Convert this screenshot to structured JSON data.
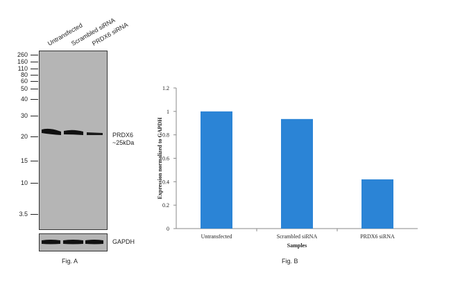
{
  "fig_a": {
    "lanes": [
      "Untransfected",
      "Scrambled siRNA",
      "PRDX6 siRNA"
    ],
    "markers": [
      "260",
      "160",
      "110",
      "80",
      "60",
      "50",
      "40",
      "30",
      "20",
      "15",
      "10",
      "3.5"
    ],
    "target_label": "PRDX6",
    "target_size": "~25kDa",
    "loading_control": "GAPDH",
    "caption": "Fig. A"
  },
  "fig_b": {
    "caption": "Fig. B"
  },
  "chart_data": {
    "type": "bar",
    "categories": [
      "Untransfected",
      "Scrambled siRNA",
      "PRDX6 siRNA"
    ],
    "values": [
      1.0,
      0.935,
      0.42
    ],
    "xlabel": "Samples",
    "ylabel": "Expression normalized to GAPDH",
    "ylim": [
      0,
      1.2
    ],
    "yticks": [
      "0",
      "0.2",
      "0.4",
      "0.6",
      "0.8",
      "1",
      "1.2"
    ],
    "bar_color": "#2b84d6",
    "grid": false,
    "legend": "none"
  }
}
